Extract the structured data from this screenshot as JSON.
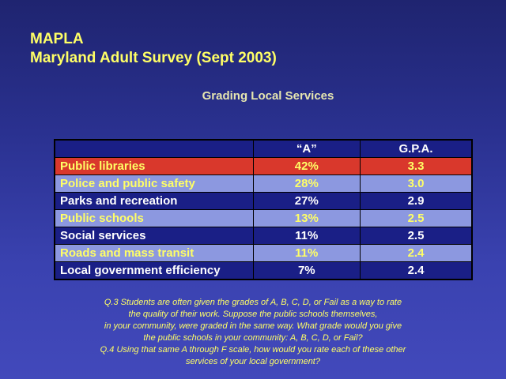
{
  "header": {
    "line1": "MAPLA",
    "line2": "Maryland Adult Survey (Sept 2003)",
    "subtitle": "Grading Local Services"
  },
  "table": {
    "columns": [
      "",
      "“A”",
      "G.P.A."
    ],
    "rows": [
      {
        "service": "Public libraries",
        "a": "42%",
        "gpa": "3.3"
      },
      {
        "service": "Police and public safety",
        "a": "28%",
        "gpa": "3.0"
      },
      {
        "service": "Parks and recreation",
        "a": "27%",
        "gpa": "2.9"
      },
      {
        "service": "Public schools",
        "a": "13%",
        "gpa": "2.5"
      },
      {
        "service": "Social services",
        "a": "11%",
        "gpa": "2.5"
      },
      {
        "service": "Roads and mass transit",
        "a": "11%",
        "gpa": "2.4"
      },
      {
        "service": "Local government efficiency",
        "a": "7%",
        "gpa": "2.4"
      }
    ]
  },
  "notes": [
    "Q.3  Students are often given the grades of A, B, C, D, or Fail as a way to rate",
    "the quality of their work.  Suppose the public schools themselves,",
    "in your community, were graded in the same way.  What grade would you give",
    "the public schools in your community: A, B, C, D, or Fail?",
    "Q.4  Using that same A through F scale, how would you rate each of these other",
    "services of your local government?"
  ],
  "colors": {
    "background": "#2a3190",
    "title": "#ffff66",
    "highlight_row": "#d9382c",
    "dark_row": "#1a1f86",
    "light_row": "#8c98e0"
  }
}
